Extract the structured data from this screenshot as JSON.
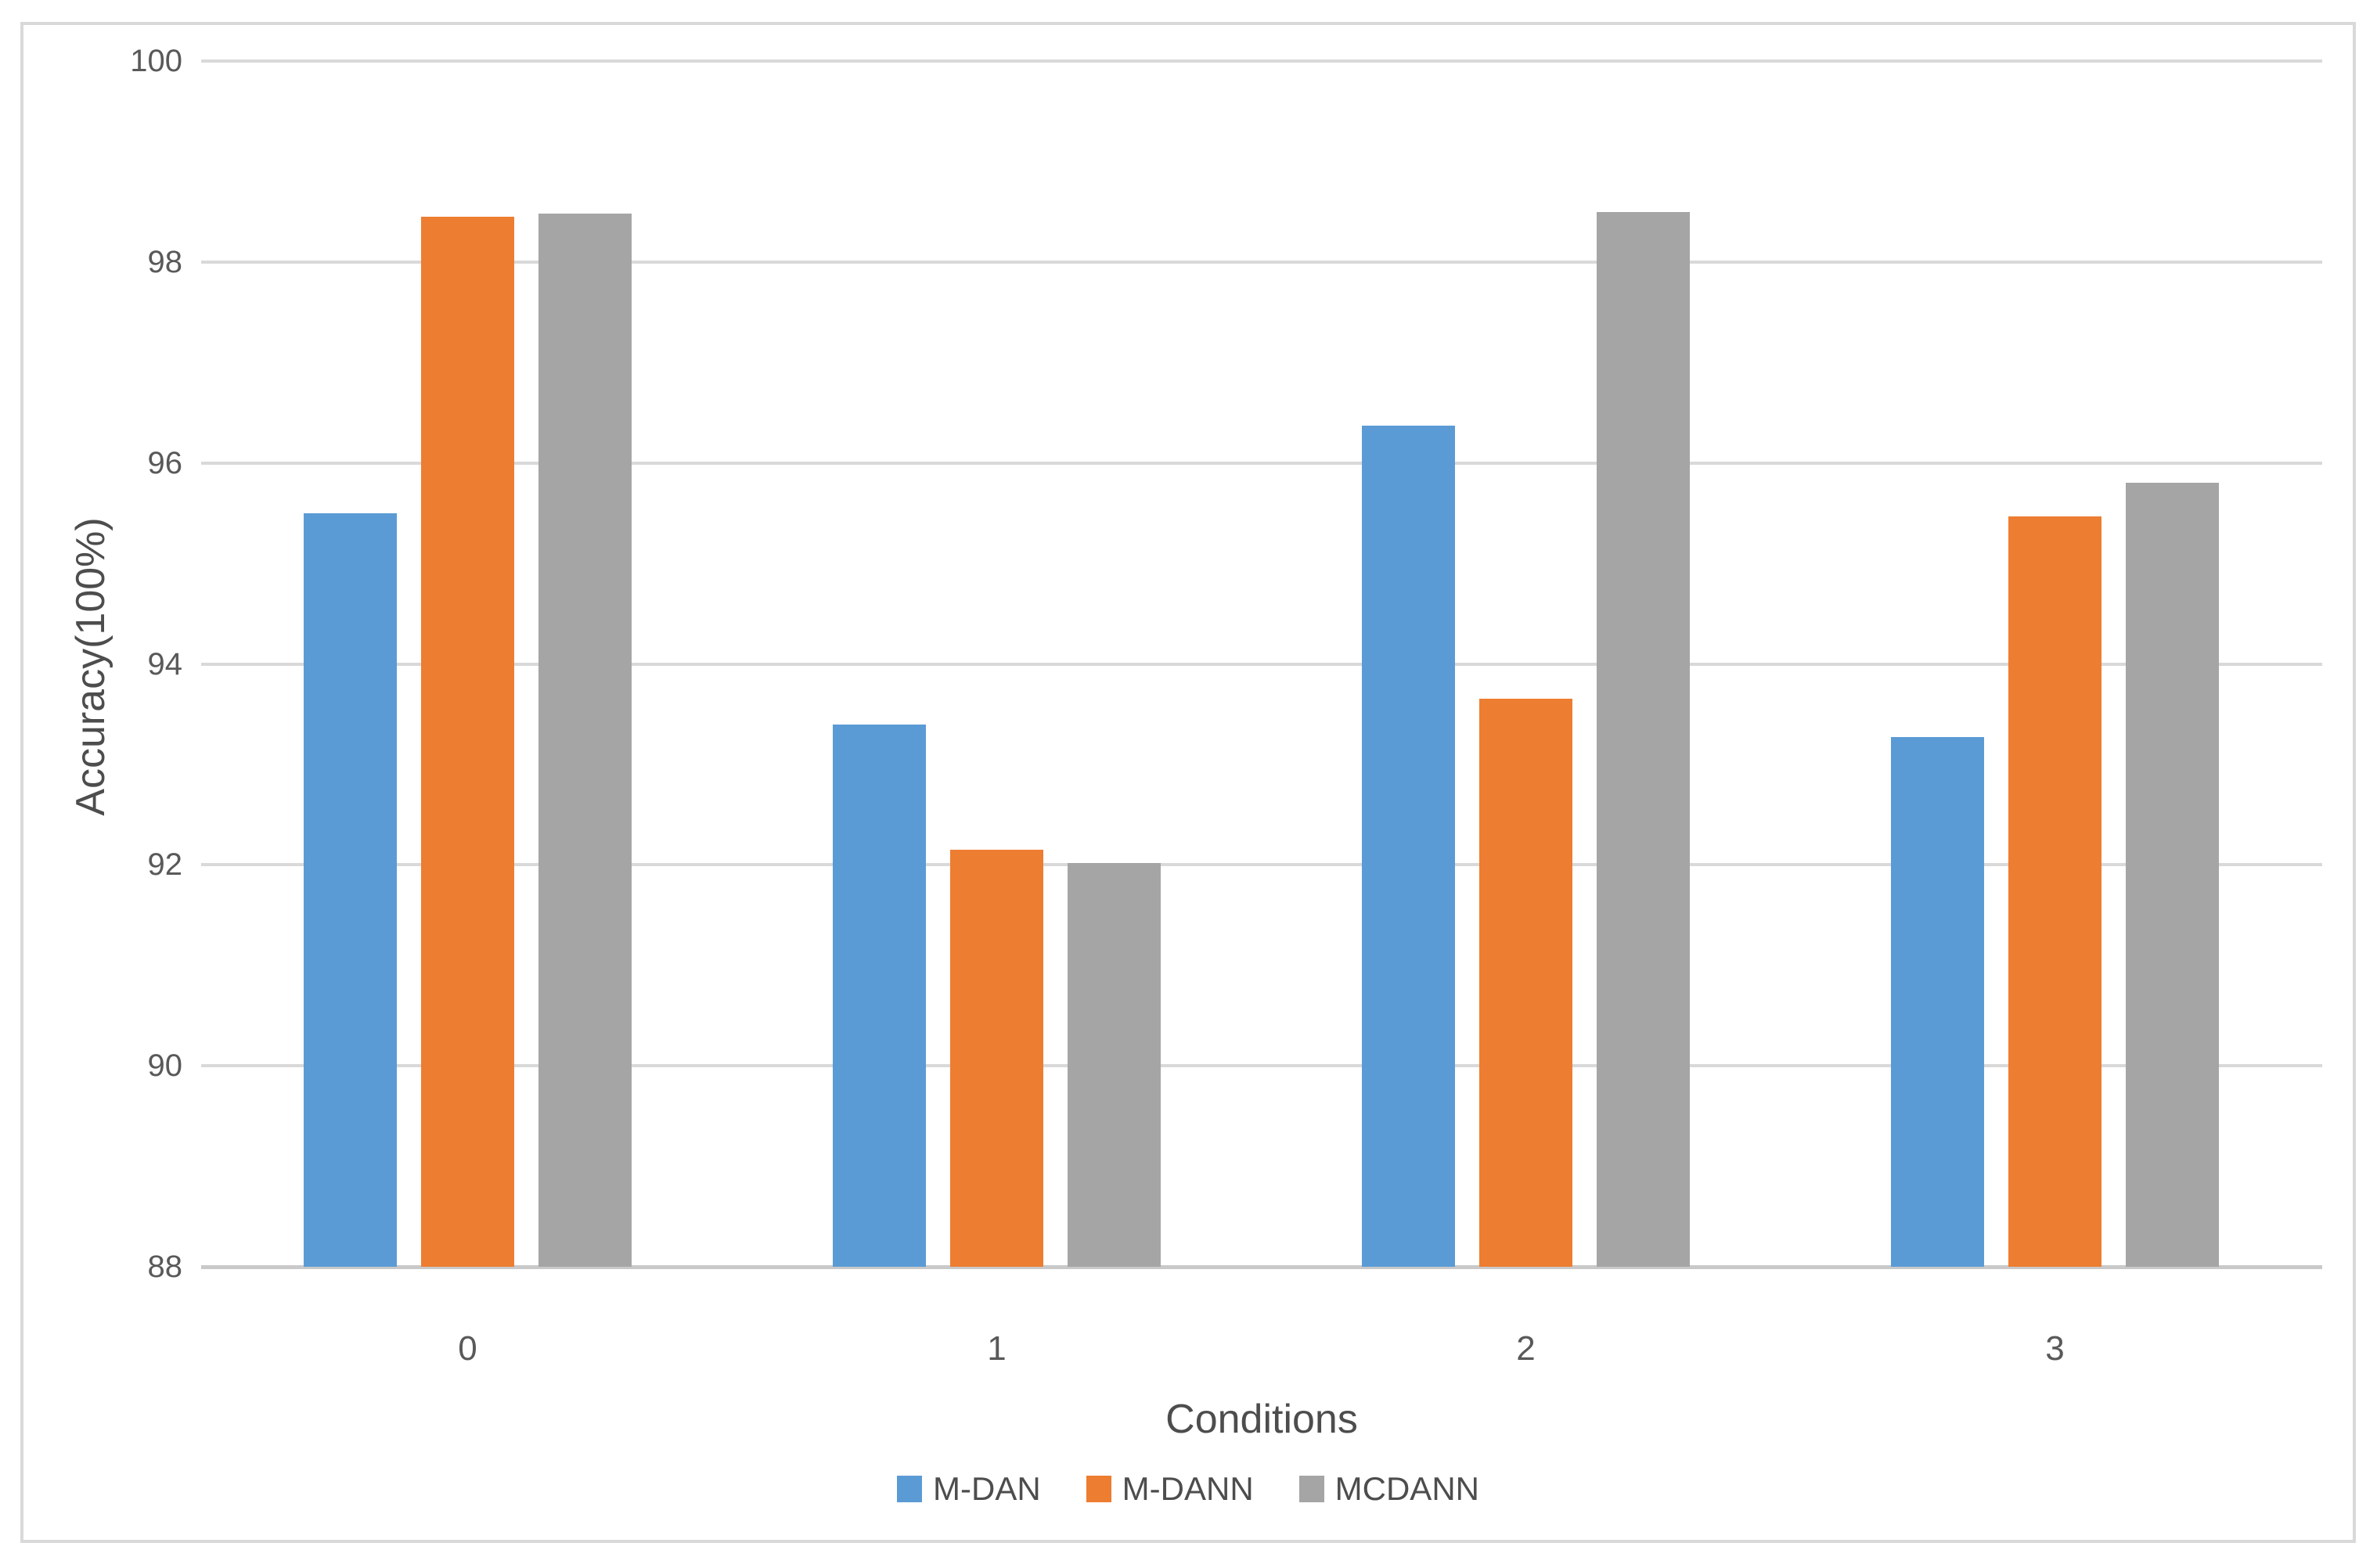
{
  "chart_data": {
    "type": "bar",
    "title": "",
    "categories": [
      "0",
      "1",
      "2",
      "3"
    ],
    "series": [
      {
        "name": "M-DAN",
        "color": "#5B9BD5",
        "values": [
          95.5,
          93.4,
          96.37,
          93.27
        ]
      },
      {
        "name": "M-DANN",
        "color": "#ED7D31",
        "values": [
          98.45,
          92.15,
          93.65,
          95.47
        ]
      },
      {
        "name": "MCDANN",
        "color": "#A5A5A5",
        "values": [
          98.48,
          92.02,
          98.5,
          95.8
        ]
      }
    ],
    "xlabel": "Conditions",
    "ylabel": "Accuracy(100%)",
    "ylim": [
      88,
      100
    ],
    "ytick_step": 2,
    "yticks": [
      "100",
      "98",
      "96",
      "94",
      "92",
      "90",
      "88"
    ],
    "grid": true,
    "legend_position": "bottom"
  },
  "colors": {
    "gridline": "#D9D9D9",
    "axis_line": "#C9C9C9",
    "frame_border": "#D9D9D9",
    "tick_text": "#595959",
    "title_text": "#4D4D4D",
    "background": "#FFFFFF"
  }
}
